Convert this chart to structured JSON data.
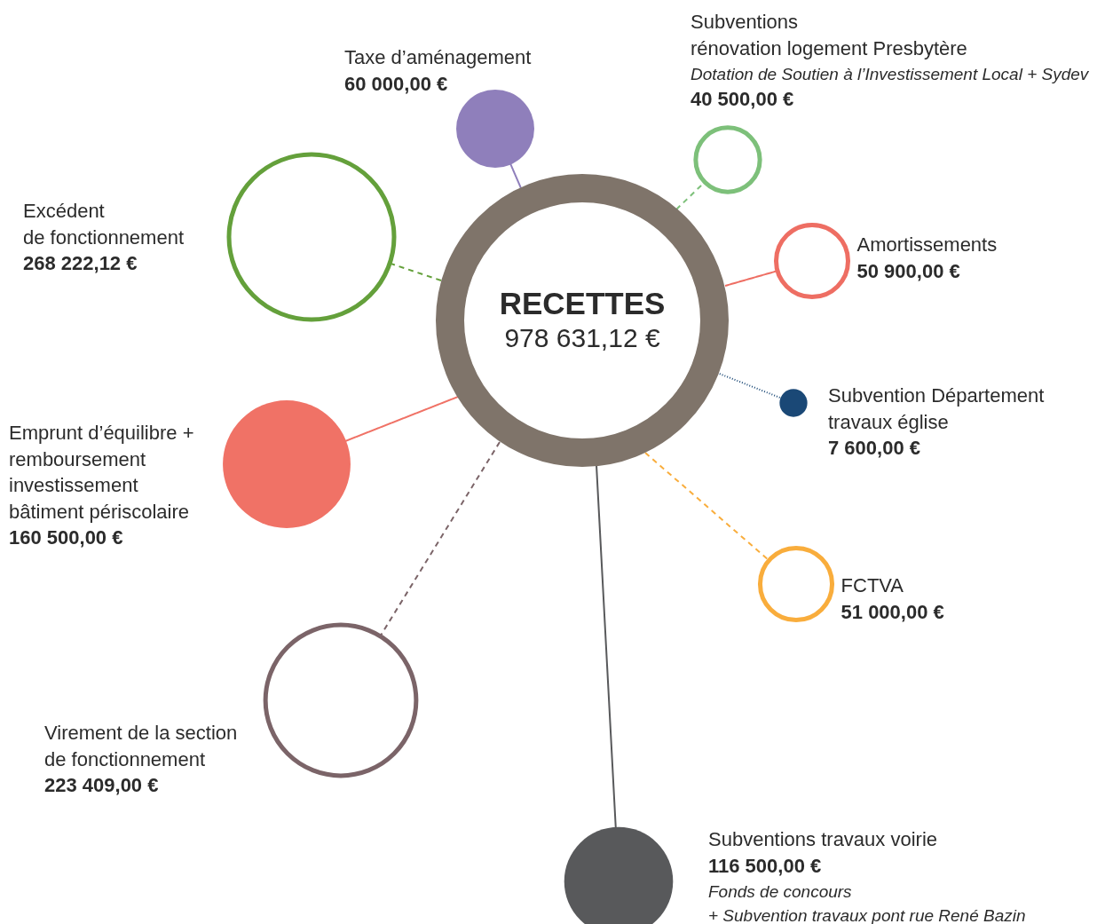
{
  "chart_data": {
    "type": "other",
    "title": "RECETTES",
    "subtitle": "978 631,12 €",
    "categories": [
      "Taxe d’aménagement",
      "Subventions\nrénovation logement Presbytère",
      "Amortissements",
      "Subvention Département\ntravaux église",
      "FCTVA",
      "Subventions travaux voirie",
      "Virement de la section\nde fonctionnement",
      "Emprunt d’équilibre +\nremboursement\ninvestissement\nbâtiment périscolaire",
      "Excédent\nde fonctionnement"
    ],
    "values": [
      60000,
      40500,
      50900,
      7600,
      51000,
      116500,
      223409,
      160500,
      268222.12
    ],
    "colors": [
      "#8f7fbb",
      "#7dc07a",
      "#ee6e63",
      "#1a4876",
      "#f9ad3c",
      "#58595b",
      "#7b6468",
      "#f07266",
      "#64a03b"
    ],
    "value_labels": [
      "60 000,00 €",
      "40 500,00 €",
      "50 900,00 €",
      "7 600,00 €",
      "51 000,00 €",
      "116 500,00 €",
      "223 409,00 €",
      "160 500,00 €",
      "268 222,12 €"
    ],
    "annotations": [
      "Dotation de Soutien à l’Investissement Local + Sydev",
      "Fonds de concours\n+ Subvention travaux pont rue René Bazin"
    ]
  }
}
